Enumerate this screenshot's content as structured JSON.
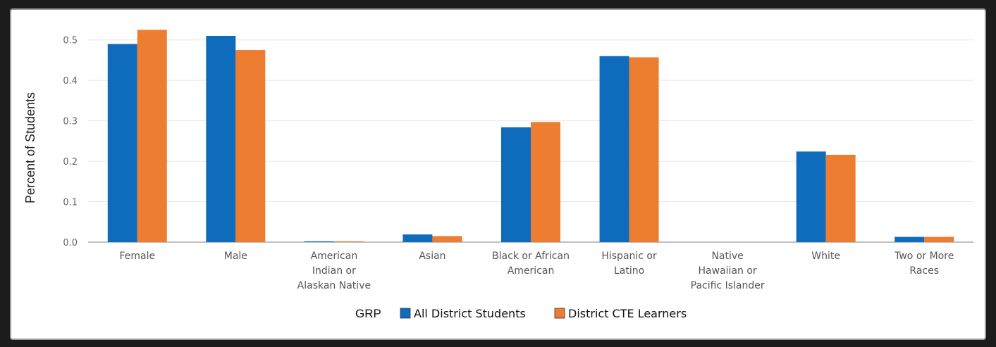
{
  "chart_data": {
    "type": "bar",
    "title": "",
    "xlabel": "",
    "ylabel": "Percent of Students",
    "ylim": [
      0,
      0.55
    ],
    "yticks": [
      "0.0",
      "0.1",
      "0.2",
      "0.3",
      "0.4",
      "0.5"
    ],
    "ytick_values": [
      0,
      0.1,
      0.2,
      0.3,
      0.4,
      0.5
    ],
    "grid": true,
    "legend_title": "GRP",
    "legend_position": "bottom",
    "categories": [
      [
        "Female"
      ],
      [
        "Male"
      ],
      [
        "American",
        "Indian or",
        "Alaskan Native"
      ],
      [
        "Asian"
      ],
      [
        "Black or African",
        "American"
      ],
      [
        "Hispanic or",
        "Latino"
      ],
      [
        "Native",
        "Hawaiian or",
        "Pacific Islander"
      ],
      [
        "White"
      ],
      [
        "Two or More",
        "Races"
      ]
    ],
    "series": [
      {
        "name": "All District Students",
        "color": "#0f6cbd",
        "values": [
          0.49,
          0.51,
          0.002,
          0.019,
          0.284,
          0.46,
          0.0,
          0.224,
          0.013
        ]
      },
      {
        "name": "District CTE Learners",
        "color": "#ed7d31",
        "values": [
          0.525,
          0.475,
          0.002,
          0.015,
          0.297,
          0.457,
          0.0,
          0.216,
          0.013
        ]
      }
    ]
  }
}
